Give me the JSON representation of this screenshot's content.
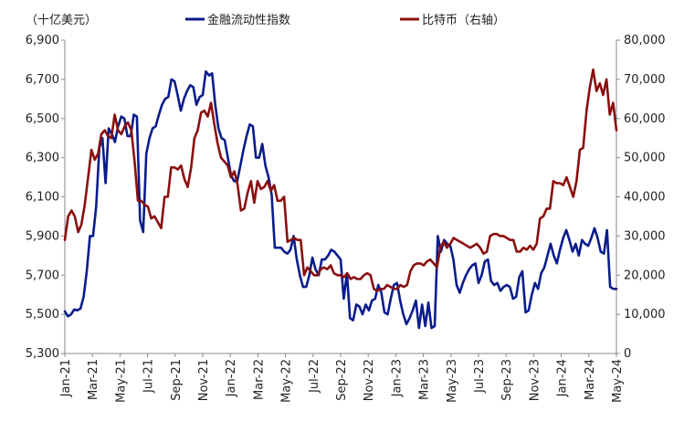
{
  "chart_data": {
    "type": "line",
    "left_axis_unit": "（十亿美元）",
    "x_tick_labels": [
      "Jan-21",
      "Mar-21",
      "May-21",
      "Jul-21",
      "Sep-21",
      "Nov-21",
      "Jan-22",
      "Mar-22",
      "May-22",
      "Jul-22",
      "Sep-22",
      "Nov-22",
      "Jan-23",
      "Mar-23",
      "May-23",
      "Jul-23",
      "Sep-23",
      "Nov-23",
      "Jan-24",
      "Mar-24",
      "May-24"
    ],
    "y_left": {
      "min": 5300,
      "max": 6900,
      "ticks": [
        "5,300",
        "5,500",
        "5,700",
        "5,900",
        "6,100",
        "6,300",
        "6,500",
        "6,700",
        "6,900"
      ]
    },
    "y_right": {
      "min": 0,
      "max": 80000,
      "ticks": [
        "0",
        "10,000",
        "20,000",
        "30,000",
        "40,000",
        "50,000",
        "60,000",
        "70,000",
        "80,000"
      ]
    },
    "legend_position": "top",
    "x_points_per_series": 175,
    "series": [
      {
        "name": "金融流动性指数",
        "axis": "left",
        "color": "#0a1c8c",
        "values": [
          5515,
          5490,
          5500,
          5525,
          5520,
          5530,
          5590,
          5720,
          5900,
          5900,
          6050,
          6350,
          6400,
          6170,
          6450,
          6420,
          6380,
          6460,
          6510,
          6500,
          6410,
          6410,
          6520,
          6510,
          5980,
          5920,
          6320,
          6400,
          6450,
          6460,
          6520,
          6570,
          6600,
          6610,
          6700,
          6690,
          6620,
          6540,
          6600,
          6640,
          6670,
          6660,
          6570,
          6610,
          6620,
          6740,
          6720,
          6730,
          6570,
          6450,
          6400,
          6390,
          6300,
          6210,
          6180,
          6180,
          6260,
          6340,
          6410,
          6470,
          6460,
          6300,
          6300,
          6370,
          6260,
          6200,
          6110,
          5840,
          5840,
          5840,
          5820,
          5810,
          5830,
          5900,
          5780,
          5700,
          5640,
          5640,
          5700,
          5790,
          5730,
          5700,
          5780,
          5780,
          5800,
          5830,
          5820,
          5800,
          5780,
          5580,
          5710,
          5480,
          5470,
          5550,
          5540,
          5500,
          5550,
          5520,
          5570,
          5580,
          5650,
          5610,
          5510,
          5500,
          5580,
          5650,
          5660,
          5570,
          5500,
          5450,
          5480,
          5520,
          5570,
          5430,
          5550,
          5440,
          5560,
          5430,
          5440,
          5900,
          5820,
          5880,
          5860,
          5850,
          5780,
          5650,
          5610,
          5660,
          5700,
          5730,
          5750,
          5760,
          5660,
          5700,
          5770,
          5780,
          5670,
          5650,
          5660,
          5620,
          5640,
          5650,
          5640,
          5580,
          5590,
          5690,
          5720,
          5510,
          5520,
          5600,
          5660,
          5630,
          5710,
          5740,
          5800,
          5860,
          5800,
          5760,
          5830,
          5890,
          5930,
          5880,
          5820,
          5860,
          5800,
          5880,
          5860,
          5850,
          5890,
          5940,
          5890,
          5820,
          5810,
          5930,
          5640,
          5630,
          5630
        ]
      },
      {
        "name": "比特币（右轴）",
        "axis": "right",
        "color": "#8a0f0f",
        "values": [
          29000,
          35000,
          36500,
          35000,
          31000,
          33000,
          38000,
          45000,
          52000,
          49500,
          51000,
          56000,
          57000,
          55500,
          55000,
          61000,
          57000,
          56000,
          58000,
          59000,
          57000,
          49000,
          39000,
          39000,
          38000,
          37500,
          34500,
          35000,
          33500,
          32000,
          40000,
          40000,
          47500,
          47500,
          47000,
          48000,
          44500,
          42500,
          47500,
          55000,
          57000,
          61500,
          62000,
          60500,
          64000,
          58500,
          53500,
          50000,
          49000,
          48000,
          45000,
          46500,
          43000,
          36500,
          37000,
          41000,
          44000,
          38500,
          44000,
          42000,
          42500,
          44000,
          41500,
          43000,
          39000,
          39000,
          40000,
          28500,
          29000,
          29500,
          29000,
          29000,
          20000,
          22000,
          21000,
          20000,
          20000,
          21500,
          22000,
          21500,
          22500,
          20500,
          20000,
          20000,
          19500,
          20500,
          19000,
          19500,
          19000,
          19000,
          20000,
          20500,
          20000,
          16500,
          16000,
          16500,
          16500,
          17500,
          17000,
          16500,
          16500,
          17500,
          17000,
          17500,
          21000,
          22500,
          23000,
          23000,
          22500,
          23500,
          24000,
          23000,
          22000,
          27000,
          28500,
          27000,
          28000,
          29500,
          29000,
          28500,
          28000,
          27500,
          27000,
          27500,
          28000,
          27000,
          25500,
          26000,
          30000,
          30500,
          30500,
          30000,
          30000,
          29500,
          29000,
          29000,
          26000,
          26000,
          27000,
          26500,
          27500,
          26500,
          28000,
          34500,
          35000,
          37000,
          37000,
          44000,
          43500,
          43500,
          43000,
          45000,
          42500,
          40000,
          44000,
          52000,
          52500,
          62000,
          68000,
          72500,
          67000,
          69000,
          66000,
          70000,
          61000,
          64000,
          57000
        ]
      }
    ]
  }
}
